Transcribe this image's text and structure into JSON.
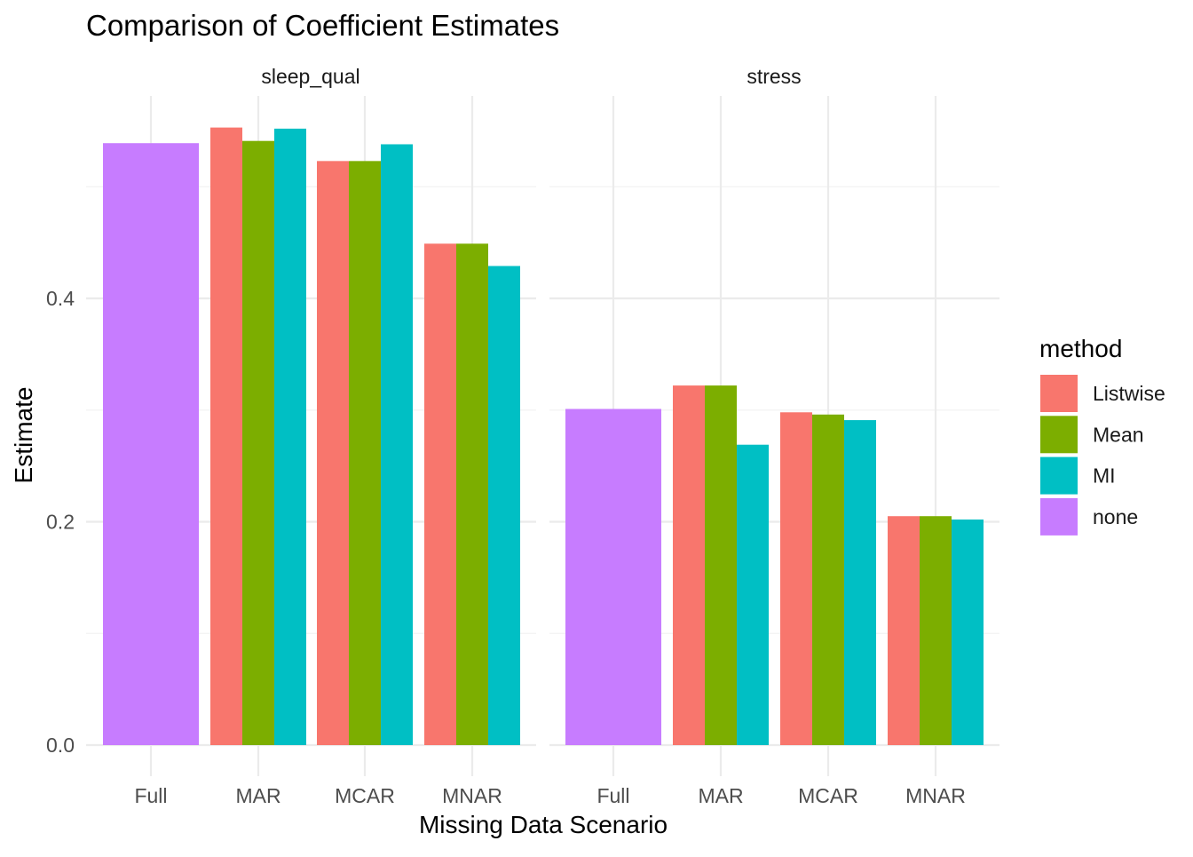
{
  "chart_data": {
    "type": "bar",
    "title": "Comparison of Coefficient Estimates",
    "xlabel": "Missing Data Scenario",
    "ylabel": "Estimate",
    "ylim": [
      0,
      0.55
    ],
    "y_ticks": [
      0.0,
      0.2,
      0.4
    ],
    "y_tick_labels": [
      "0.0",
      "0.2",
      "0.4"
    ],
    "grid": true,
    "legend_position": "right",
    "legend": {
      "title": "method",
      "entries": [
        {
          "label": "Listwise",
          "color": "#F8766D"
        },
        {
          "label": "Mean",
          "color": "#7CAE00"
        },
        {
          "label": "MI",
          "color": "#00BFC4"
        },
        {
          "label": "none",
          "color": "#C77CFF"
        }
      ]
    },
    "categories": [
      "Full",
      "MAR",
      "MCAR",
      "MNAR"
    ],
    "facets": [
      {
        "name": "sleep_qual",
        "groups": [
          {
            "category": "Full",
            "bars": [
              {
                "method": "none",
                "value": 0.539
              }
            ]
          },
          {
            "category": "MAR",
            "bars": [
              {
                "method": "Listwise",
                "value": 0.553
              },
              {
                "method": "Mean",
                "value": 0.541
              },
              {
                "method": "MI",
                "value": 0.552
              }
            ]
          },
          {
            "category": "MCAR",
            "bars": [
              {
                "method": "Listwise",
                "value": 0.523
              },
              {
                "method": "Mean",
                "value": 0.523
              },
              {
                "method": "MI",
                "value": 0.538
              }
            ]
          },
          {
            "category": "MNAR",
            "bars": [
              {
                "method": "Listwise",
                "value": 0.449
              },
              {
                "method": "Mean",
                "value": 0.449
              },
              {
                "method": "MI",
                "value": 0.429
              }
            ]
          }
        ]
      },
      {
        "name": "stress",
        "groups": [
          {
            "category": "Full",
            "bars": [
              {
                "method": "none",
                "value": 0.301
              }
            ]
          },
          {
            "category": "MAR",
            "bars": [
              {
                "method": "Listwise",
                "value": 0.322
              },
              {
                "method": "Mean",
                "value": 0.322
              },
              {
                "method": "MI",
                "value": 0.269
              }
            ]
          },
          {
            "category": "MCAR",
            "bars": [
              {
                "method": "Listwise",
                "value": 0.298
              },
              {
                "method": "Mean",
                "value": 0.296
              },
              {
                "method": "MI",
                "value": 0.291
              }
            ]
          },
          {
            "category": "MNAR",
            "bars": [
              {
                "method": "Listwise",
                "value": 0.205
              },
              {
                "method": "Mean",
                "value": 0.205
              },
              {
                "method": "MI",
                "value": 0.202
              }
            ]
          }
        ]
      }
    ]
  }
}
